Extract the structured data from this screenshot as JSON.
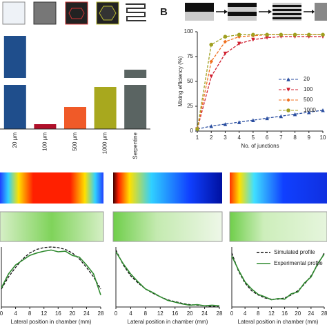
{
  "chart_data": [
    {
      "type": "bar",
      "categories": [
        "20 µm",
        "100 µm",
        "500 µm",
        "1000 µm",
        "Serpentine"
      ],
      "values": [
        135,
        7,
        32,
        61,
        86
      ],
      "colors": [
        "#1f4e8c",
        "#b0102a",
        "#f05a28",
        "#a8a81e",
        "#5a6462"
      ],
      "ylim": [
        0,
        140
      ]
    },
    {
      "type": "line",
      "panel_label": "B",
      "x": [
        1,
        2,
        3,
        4,
        5,
        6,
        7,
        8,
        9,
        10
      ],
      "xlim": [
        1,
        10
      ],
      "xticks": [
        1,
        2,
        3,
        4,
        5,
        6,
        7,
        8,
        9,
        10
      ],
      "ylim": [
        0,
        100
      ],
      "yticks": [
        0,
        25,
        50,
        75,
        100
      ],
      "x_label": "No. of junctions",
      "y_label": "Mixing efficiency (%)",
      "legend": "right",
      "series": [
        {
          "name": "20",
          "color": "#2a4ea0",
          "marker": "triangle-up",
          "line_style": "dashed",
          "values": [
            2,
            5,
            7,
            9,
            11,
            13,
            15,
            17,
            19,
            21
          ]
        },
        {
          "name": "100",
          "color": "#d02030",
          "marker": "triangle-down",
          "line_style": "dashed",
          "values": [
            2,
            55,
            78,
            88,
            92,
            94,
            95,
            95,
            95,
            95
          ]
        },
        {
          "name": "500",
          "color": "#f07020",
          "marker": "diamond",
          "line_style": "dashed",
          "values": [
            2,
            70,
            90,
            95,
            96,
            97,
            97,
            97,
            97,
            97
          ]
        },
        {
          "name": "1000",
          "color": "#a0a020",
          "marker": "circle",
          "line_style": "dashed",
          "values": [
            2,
            87,
            95,
            97,
            97,
            97,
            97,
            97,
            97,
            97
          ]
        }
      ]
    },
    {
      "type": "line",
      "x": [
        0,
        2,
        4,
        6,
        8,
        10,
        12,
        14,
        16,
        18,
        20,
        22,
        24,
        26,
        28
      ],
      "xlim": [
        0,
        28
      ],
      "xticks": [
        0,
        4,
        8,
        12,
        16,
        20,
        24,
        28
      ],
      "ylim": [
        0,
        1
      ],
      "x_label": "Lateral position in chamber (mm)",
      "series": [
        {
          "color": "#111111",
          "line_style": "dashed",
          "values": [
            0.3,
            0.5,
            0.66,
            0.8,
            0.9,
            0.96,
            0.99,
            1.0,
            0.99,
            0.96,
            0.9,
            0.8,
            0.66,
            0.5,
            0.3
          ]
        },
        {
          "color": "#2f8a2f",
          "line_style": "solid",
          "values": [
            0.32,
            0.55,
            0.7,
            0.78,
            0.86,
            0.9,
            0.93,
            0.95,
            0.92,
            0.93,
            0.86,
            0.83,
            0.7,
            0.55,
            0.2
          ]
        }
      ]
    },
    {
      "type": "line",
      "x": [
        0,
        2,
        4,
        6,
        8,
        10,
        12,
        14,
        16,
        18,
        20,
        22,
        24,
        26,
        28
      ],
      "xlim": [
        0,
        28
      ],
      "xticks": [
        0,
        4,
        8,
        12,
        16,
        20,
        24,
        28
      ],
      "ylim": [
        0,
        1
      ],
      "x_label": "Lateral position in chamber (mm)",
      "series": [
        {
          "color": "#111111",
          "line_style": "dashed",
          "values": [
            0.95,
            0.7,
            0.52,
            0.4,
            0.3,
            0.23,
            0.17,
            0.12,
            0.09,
            0.06,
            0.04,
            0.03,
            0.02,
            0.01,
            0.0
          ]
        },
        {
          "color": "#2f8a2f",
          "line_style": "solid",
          "values": [
            0.92,
            0.72,
            0.55,
            0.42,
            0.3,
            0.24,
            0.17,
            0.11,
            0.08,
            0.05,
            0.03,
            0.04,
            0.02,
            0.03,
            0.02
          ]
        }
      ]
    },
    {
      "type": "line",
      "x": [
        0,
        2,
        4,
        6,
        8,
        10,
        12,
        14,
        16,
        18,
        20,
        22,
        24,
        26,
        28
      ],
      "xlim": [
        0,
        28
      ],
      "xticks": [
        0,
        4,
        8,
        12,
        16,
        20,
        24,
        28
      ],
      "ylim": [
        0,
        1
      ],
      "x_label": "Lateral position in chamber (mm)",
      "legend": "top",
      "series": [
        {
          "name": "Simulated profile",
          "color": "#111111",
          "line_style": "dashed",
          "values": [
            0.9,
            0.6,
            0.4,
            0.27,
            0.2,
            0.15,
            0.13,
            0.13,
            0.15,
            0.2,
            0.27,
            0.38,
            0.52,
            0.7,
            0.9
          ]
        },
        {
          "name": "Experimental profile",
          "color": "#2f8a2f",
          "line_style": "solid",
          "values": [
            0.85,
            0.62,
            0.42,
            0.3,
            0.21,
            0.17,
            0.12,
            0.14,
            0.13,
            0.22,
            0.25,
            0.4,
            0.5,
            0.72,
            0.88
          ]
        }
      ]
    }
  ]
}
